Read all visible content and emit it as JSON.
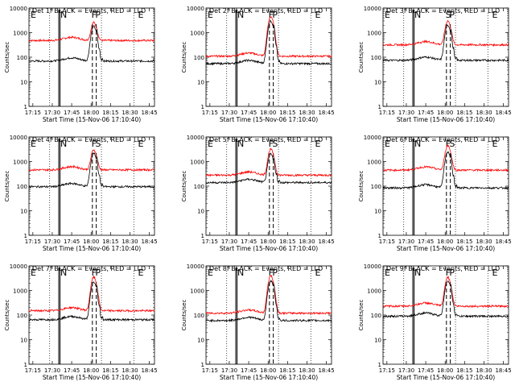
{
  "chart_data": [
    {
      "type": "line",
      "title": "Det 1f BLACK = Events, RED = LLD",
      "xlabel": "Start Time (15-Nov-06 17:10:40)",
      "ylabel": "Counts/sec",
      "y_scale": "log",
      "ylim": [
        1,
        10000
      ],
      "xlim": [
        "17:12",
        "18:49"
      ],
      "x_ticks": [
        "17:15",
        "17:30",
        "17:45",
        "18:00",
        "18:15",
        "18:30",
        "18:45"
      ],
      "y_ticks": [
        "1",
        "10",
        "100",
        "1000",
        "10000"
      ],
      "annotations": [
        "E",
        "N",
        "F",
        "P",
        "E"
      ],
      "series": [
        {
          "color": "#ff0000",
          "baseline": 480,
          "peak": 2600,
          "x": [
            "17:12",
            "17:30",
            "17:45",
            "17:55",
            "18:00",
            "18:05",
            "18:15",
            "18:30",
            "18:45",
            "18:49"
          ],
          "values": [
            450,
            470,
            560,
            520,
            2600,
            420,
            450,
            470,
            430,
            420
          ]
        },
        {
          "color": "#000000",
          "baseline": 70,
          "peak": 1800,
          "x": [
            "17:12",
            "17:30",
            "17:45",
            "17:55",
            "18:00",
            "18:05",
            "18:15",
            "18:30",
            "18:45",
            "18:49"
          ],
          "values": [
            60,
            70,
            100,
            80,
            1800,
            60,
            70,
            75,
            60,
            55
          ]
        }
      ]
    },
    {
      "type": "line",
      "title": "Det 2f BLACK = Events, RED = LLD",
      "xlabel": "Start Time (15-Nov-06 17:10:40)",
      "ylabel": "Counts/sec",
      "y_scale": "log",
      "ylim": [
        1,
        10000
      ],
      "xlim": [
        "17:12",
        "18:49"
      ],
      "x_ticks": [
        "17:15",
        "17:30",
        "17:45",
        "18:00",
        "18:15",
        "18:30",
        "18:45"
      ],
      "y_ticks": [
        "1",
        "10",
        "100",
        "1000",
        "10000"
      ],
      "annotations": [
        "E",
        "N",
        "F",
        "P",
        "E"
      ],
      "series": [
        {
          "color": "#ff0000",
          "baseline": 110,
          "peak": 4500,
          "x": [
            "17:12",
            "17:30",
            "17:45",
            "17:55",
            "18:00",
            "18:05",
            "18:15",
            "18:30",
            "18:45",
            "18:49"
          ],
          "values": [
            95,
            120,
            180,
            140,
            4500,
            120,
            150,
            170,
            110,
            100
          ]
        },
        {
          "color": "#000000",
          "baseline": 55,
          "peak": 3000,
          "x": [
            "17:12",
            "17:30",
            "17:45",
            "17:55",
            "18:00",
            "18:05",
            "18:15",
            "18:30",
            "18:45",
            "18:49"
          ],
          "values": [
            45,
            55,
            90,
            60,
            3000,
            60,
            70,
            80,
            55,
            45
          ]
        }
      ]
    },
    {
      "type": "line",
      "title": "Det 3f BLACK = Events, RED = LLD",
      "xlabel": "Start Time (15-Nov-06 17:10:40)",
      "ylabel": "Counts/sec",
      "y_scale": "log",
      "ylim": [
        1,
        10000
      ],
      "xlim": [
        "17:12",
        "18:49"
      ],
      "x_ticks": [
        "17:15",
        "17:30",
        "17:45",
        "18:00",
        "18:15",
        "18:30",
        "18:45"
      ],
      "y_ticks": [
        "1",
        "10",
        "100",
        "1000",
        "10000"
      ],
      "annotations": [
        "E",
        "N",
        "S",
        "P",
        "E"
      ],
      "series": [
        {
          "color": "#ff0000",
          "baseline": 320,
          "peak": 3000,
          "x": [
            "17:12",
            "17:30",
            "17:45",
            "17:55",
            "18:00",
            "18:05",
            "18:15",
            "18:30",
            "18:45",
            "18:49"
          ],
          "values": [
            300,
            320,
            360,
            340,
            3000,
            300,
            320,
            330,
            290,
            280
          ]
        },
        {
          "color": "#000000",
          "baseline": 75,
          "peak": 2000,
          "x": [
            "17:12",
            "17:30",
            "17:45",
            "17:55",
            "18:00",
            "18:05",
            "18:15",
            "18:30",
            "18:45",
            "18:49"
          ],
          "values": [
            65,
            75,
            110,
            85,
            2000,
            70,
            75,
            85,
            70,
            65
          ]
        }
      ]
    },
    {
      "type": "line",
      "title": "Det 4f BLACK = Events, RED = LLD",
      "xlabel": "Start Time (15-Nov-06 17:10:40)",
      "ylabel": "Counts/sec",
      "y_scale": "log",
      "ylim": [
        1,
        10000
      ],
      "xlim": [
        "17:12",
        "18:49"
      ],
      "x_ticks": [
        "17:15",
        "17:30",
        "17:45",
        "18:00",
        "18:15",
        "18:30",
        "18:45"
      ],
      "y_ticks": [
        "1",
        "10",
        "100",
        "1000",
        "10000"
      ],
      "annotations": [
        "E",
        "N",
        "F",
        "S",
        "E"
      ],
      "series": [
        {
          "color": "#ff0000",
          "baseline": 460,
          "peak": 3000,
          "x": [
            "17:12",
            "17:30",
            "17:45",
            "17:55",
            "18:00",
            "18:05",
            "18:15",
            "18:30",
            "18:45",
            "18:49"
          ],
          "values": [
            430,
            450,
            520,
            490,
            3000,
            430,
            450,
            470,
            430,
            420
          ]
        },
        {
          "color": "#000000",
          "baseline": 95,
          "peak": 2200,
          "x": [
            "17:12",
            "17:30",
            "17:45",
            "17:55",
            "18:00",
            "18:05",
            "18:15",
            "18:30",
            "18:45",
            "18:49"
          ],
          "values": [
            80,
            95,
            120,
            100,
            2200,
            85,
            90,
            100,
            80,
            75
          ]
        }
      ]
    },
    {
      "type": "line",
      "title": "Det 5f BLACK = Events, RED = LLD",
      "xlabel": "Start Time (15-Nov-06 17:10:40)",
      "ylabel": "Counts/sec",
      "y_scale": "log",
      "ylim": [
        1,
        10000
      ],
      "xlim": [
        "17:12",
        "18:49"
      ],
      "x_ticks": [
        "17:15",
        "17:30",
        "17:45",
        "18:00",
        "18:15",
        "18:30",
        "18:45"
      ],
      "y_ticks": [
        "1",
        "10",
        "100",
        "1000",
        "10000"
      ],
      "annotations": [
        "E",
        "N",
        "F",
        "S",
        "E"
      ],
      "series": [
        {
          "color": "#ff0000",
          "baseline": 280,
          "peak": 3200,
          "x": [
            "17:12",
            "17:30",
            "17:45",
            "17:55",
            "18:00",
            "18:05",
            "18:15",
            "18:30",
            "18:45",
            "18:49"
          ],
          "values": [
            250,
            270,
            320,
            290,
            3200,
            260,
            280,
            290,
            260,
            250
          ]
        },
        {
          "color": "#000000",
          "baseline": 140,
          "peak": 2000,
          "x": [
            "17:12",
            "17:30",
            "17:45",
            "17:55",
            "18:00",
            "18:05",
            "18:15",
            "18:30",
            "18:45",
            "18:49"
          ],
          "values": [
            120,
            140,
            160,
            150,
            2000,
            130,
            140,
            150,
            125,
            115
          ]
        }
      ]
    },
    {
      "type": "line",
      "title": "Det 6f BLACK = Events, RED = LLD",
      "xlabel": "Start Time (15-Nov-06 17:10:40)",
      "ylabel": "Counts/sec",
      "y_scale": "log",
      "ylim": [
        1,
        10000
      ],
      "xlim": [
        "17:12",
        "18:49"
      ],
      "x_ticks": [
        "17:15",
        "17:30",
        "17:45",
        "18:00",
        "18:15",
        "18:30",
        "18:45"
      ],
      "y_ticks": [
        "1",
        "10",
        "100",
        "1000",
        "10000"
      ],
      "annotations": [
        "E",
        "N",
        "F",
        "S",
        "E"
      ],
      "series": [
        {
          "color": "#ff0000",
          "baseline": 450,
          "peak": 4500,
          "x": [
            "17:12",
            "17:30",
            "17:45",
            "17:55",
            "18:00",
            "18:05",
            "18:15",
            "18:30",
            "18:45",
            "18:49"
          ],
          "values": [
            430,
            450,
            500,
            470,
            4500,
            430,
            440,
            460,
            430,
            420
          ]
        },
        {
          "color": "#000000",
          "baseline": 85,
          "peak": 2500,
          "x": [
            "17:12",
            "17:30",
            "17:45",
            "17:55",
            "18:00",
            "18:05",
            "18:15",
            "18:30",
            "18:45",
            "18:49"
          ],
          "values": [
            70,
            85,
            110,
            90,
            2500,
            75,
            80,
            90,
            75,
            70
          ]
        }
      ]
    },
    {
      "type": "line",
      "title": "Det 7f BLACK = Events, RED = LLD",
      "xlabel": "Start Time (15-Nov-06 17:10:40)",
      "ylabel": "Counts/sec",
      "y_scale": "log",
      "ylim": [
        1,
        10000
      ],
      "xlim": [
        "17:12",
        "18:49"
      ],
      "x_ticks": [
        "17:15",
        "17:30",
        "17:45",
        "18:00",
        "18:15",
        "18:30",
        "18:45"
      ],
      "y_ticks": [
        "1",
        "10",
        "100",
        "1000",
        "10000"
      ],
      "annotations": [
        "E",
        "N",
        "F",
        "P",
        "E"
      ],
      "series": [
        {
          "color": "#ff0000",
          "baseline": 150,
          "peak": 3500,
          "x": [
            "17:12",
            "17:30",
            "17:45",
            "17:55",
            "18:00",
            "18:05",
            "18:15",
            "18:30",
            "18:45",
            "18:49"
          ],
          "values": [
            130,
            150,
            210,
            170,
            3500,
            140,
            150,
            160,
            130,
            125
          ]
        },
        {
          "color": "#000000",
          "baseline": 65,
          "peak": 2200,
          "x": [
            "17:12",
            "17:30",
            "17:45",
            "17:55",
            "18:00",
            "18:05",
            "18:15",
            "18:30",
            "18:45",
            "18:49"
          ],
          "values": [
            55,
            65,
            90,
            70,
            2200,
            60,
            65,
            70,
            55,
            50
          ]
        }
      ]
    },
    {
      "type": "line",
      "title": "Det 8f BLACK = Events, RED = LLD",
      "xlabel": "Start Time (15-Nov-06 17:10:40)",
      "ylabel": "Counts/sec",
      "y_scale": "log",
      "ylim": [
        1,
        10000
      ],
      "xlim": [
        "17:12",
        "18:49"
      ],
      "x_ticks": [
        "17:15",
        "17:30",
        "17:45",
        "18:00",
        "18:15",
        "18:30",
        "18:45"
      ],
      "y_ticks": [
        "1",
        "10",
        "100",
        "1000",
        "10000"
      ],
      "annotations": [
        "E",
        "N",
        "F",
        "P",
        "E"
      ],
      "series": [
        {
          "color": "#ff0000",
          "baseline": 120,
          "peak": 4000,
          "x": [
            "17:12",
            "17:30",
            "17:45",
            "17:55",
            "18:00",
            "18:05",
            "18:15",
            "18:30",
            "18:45",
            "18:49"
          ],
          "values": [
            105,
            120,
            150,
            130,
            4000,
            110,
            120,
            125,
            105,
            100
          ]
        },
        {
          "color": "#000000",
          "baseline": 60,
          "peak": 2500,
          "x": [
            "17:12",
            "17:30",
            "17:45",
            "17:55",
            "18:00",
            "18:05",
            "18:15",
            "18:30",
            "18:45",
            "18:49"
          ],
          "values": [
            50,
            60,
            75,
            65,
            2500,
            55,
            60,
            62,
            50,
            48
          ]
        }
      ]
    },
    {
      "type": "line",
      "title": "Det 9f BLACK = Events, RED = LLD",
      "xlabel": "Start Time (15-Nov-06 17:10:40)",
      "ylabel": "Counts/sec",
      "y_scale": "log",
      "ylim": [
        1,
        10000
      ],
      "xlim": [
        "17:12",
        "18:49"
      ],
      "x_ticks": [
        "17:15",
        "17:30",
        "17:45",
        "18:00",
        "18:15",
        "18:30",
        "18:45"
      ],
      "y_ticks": [
        "1",
        "10",
        "100",
        "1000",
        "10000"
      ],
      "annotations": [
        "E",
        "N",
        "F",
        "P",
        "E"
      ],
      "series": [
        {
          "color": "#ff0000",
          "baseline": 230,
          "peak": 3500,
          "x": [
            "17:12",
            "17:30",
            "17:45",
            "17:55",
            "18:00",
            "18:05",
            "18:15",
            "18:30",
            "18:45",
            "18:49"
          ],
          "values": [
            210,
            230,
            270,
            250,
            3500,
            220,
            230,
            240,
            220,
            210
          ]
        },
        {
          "color": "#000000",
          "baseline": 90,
          "peak": 2500,
          "x": [
            "17:12",
            "17:30",
            "17:45",
            "17:55",
            "18:00",
            "18:05",
            "18:15",
            "18:30",
            "18:45",
            "18:49"
          ],
          "values": [
            75,
            90,
            110,
            95,
            2500,
            80,
            85,
            90,
            75,
            70
          ]
        }
      ]
    }
  ]
}
